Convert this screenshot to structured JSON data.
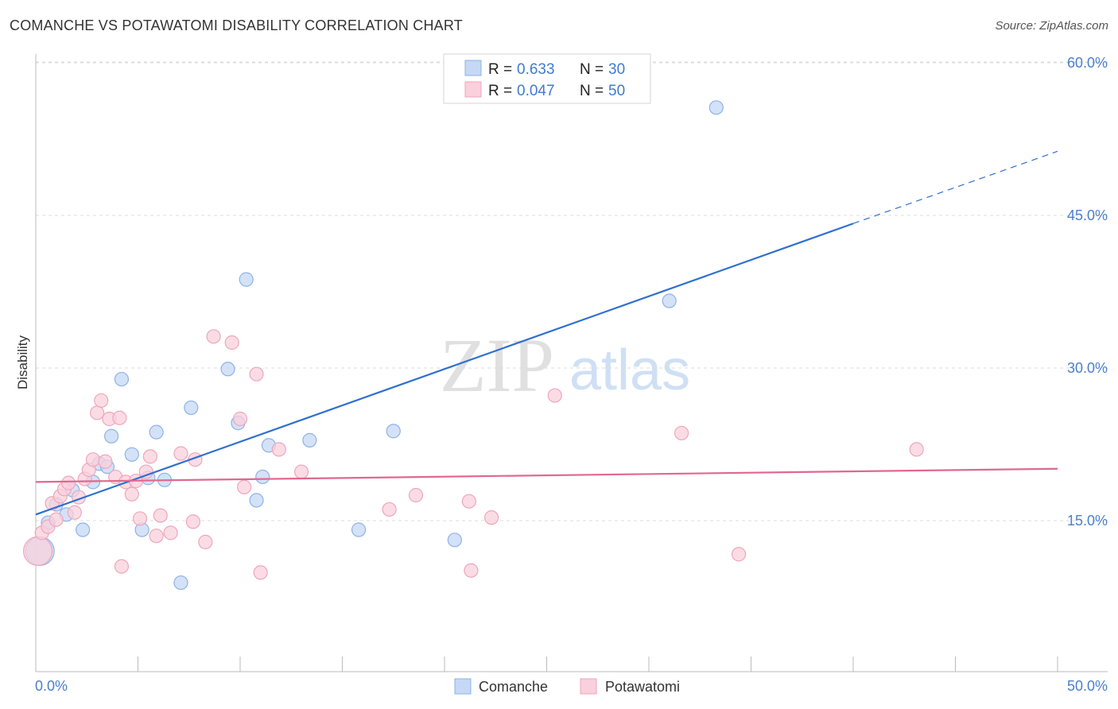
{
  "header": {
    "title": "COMANCHE VS POTAWATOMI DISABILITY CORRELATION CHART",
    "source": "Source: ZipAtlas.com"
  },
  "watermark": {
    "zip": "ZIP",
    "atlas": "atlas"
  },
  "legend": {
    "rows": [
      {
        "r_label": "R =",
        "r_value": "0.633",
        "n_label": "N =",
        "n_value": "30"
      },
      {
        "r_label": "R =",
        "r_value": "0.047",
        "n_label": "N =",
        "n_value": "50"
      }
    ]
  },
  "bottom_legend": [
    "Comanche",
    "Potawatomi"
  ],
  "colors": {
    "comanche_fill": "#c5d8f5",
    "comanche_stroke": "#8fb2e6",
    "comanche_line": "#2f6fd0",
    "potawatomi_fill": "#f9d0dc",
    "potawatomi_stroke": "#eea6bc",
    "potawatomi_line": "#e0688f",
    "tick_text": "#4a7fcf",
    "grid": "#dddddd"
  },
  "chart_data": {
    "type": "scatter",
    "title": "COMANCHE VS POTAWATOMI DISABILITY CORRELATION CHART",
    "xlabel": "",
    "ylabel": "Disability",
    "xlim": [
      0,
      50
    ],
    "ylim": [
      0,
      63
    ],
    "x_tick_labels": [
      "0.0%",
      "50.0%"
    ],
    "y_ticks": [
      15,
      30,
      45,
      60
    ],
    "y_tick_labels": [
      "15.0%",
      "30.0%",
      "45.0%",
      "60.0%"
    ],
    "grid": true,
    "series": [
      {
        "name": "Comanche",
        "R": 0.633,
        "N": 30,
        "points": [
          [
            0.2,
            12.0
          ],
          [
            0.6,
            14.8
          ],
          [
            1.0,
            16.6
          ],
          [
            1.5,
            15.6
          ],
          [
            1.8,
            18.0
          ],
          [
            2.3,
            14.1
          ],
          [
            2.8,
            18.8
          ],
          [
            3.1,
            20.6
          ],
          [
            3.5,
            20.3
          ],
          [
            3.7,
            23.3
          ],
          [
            4.2,
            28.9
          ],
          [
            4.7,
            21.5
          ],
          [
            5.2,
            14.1
          ],
          [
            5.5,
            19.2
          ],
          [
            5.9,
            23.7
          ],
          [
            6.3,
            19.0
          ],
          [
            7.1,
            8.9
          ],
          [
            7.6,
            26.1
          ],
          [
            9.4,
            29.9
          ],
          [
            9.9,
            24.6
          ],
          [
            10.3,
            38.7
          ],
          [
            10.8,
            17.0
          ],
          [
            11.1,
            19.3
          ],
          [
            11.4,
            22.4
          ],
          [
            13.4,
            22.9
          ],
          [
            15.8,
            14.1
          ],
          [
            17.5,
            23.8
          ],
          [
            20.5,
            13.1
          ],
          [
            31.0,
            36.6
          ],
          [
            33.3,
            55.6
          ]
        ],
        "trend": {
          "x0": 0,
          "y0": 15.6,
          "x1": 40,
          "y1": 44.2,
          "dash_to_x": 50,
          "dash_to_y": 51.3
        }
      },
      {
        "name": "Potawatomi",
        "R": 0.047,
        "N": 50,
        "points": [
          [
            0.1,
            12.0
          ],
          [
            0.3,
            13.8
          ],
          [
            0.6,
            14.4
          ],
          [
            0.8,
            16.7
          ],
          [
            1.0,
            15.1
          ],
          [
            1.2,
            17.4
          ],
          [
            1.4,
            18.1
          ],
          [
            1.6,
            18.7
          ],
          [
            1.9,
            15.8
          ],
          [
            2.1,
            17.3
          ],
          [
            2.4,
            19.1
          ],
          [
            2.6,
            20.0
          ],
          [
            2.8,
            21.0
          ],
          [
            3.0,
            25.6
          ],
          [
            3.2,
            26.8
          ],
          [
            3.4,
            20.8
          ],
          [
            3.6,
            25.0
          ],
          [
            3.9,
            19.3
          ],
          [
            4.1,
            25.1
          ],
          [
            4.2,
            10.5
          ],
          [
            4.4,
            18.8
          ],
          [
            4.7,
            17.6
          ],
          [
            4.9,
            18.9
          ],
          [
            5.1,
            15.2
          ],
          [
            5.4,
            19.8
          ],
          [
            5.6,
            21.3
          ],
          [
            5.9,
            13.5
          ],
          [
            6.1,
            15.5
          ],
          [
            6.6,
            13.8
          ],
          [
            7.1,
            21.6
          ],
          [
            7.7,
            14.9
          ],
          [
            7.8,
            21.0
          ],
          [
            8.3,
            12.9
          ],
          [
            8.7,
            33.1
          ],
          [
            9.6,
            32.5
          ],
          [
            10.0,
            25.0
          ],
          [
            10.2,
            18.3
          ],
          [
            10.8,
            29.4
          ],
          [
            11.0,
            9.9
          ],
          [
            11.9,
            22.0
          ],
          [
            13.0,
            19.8
          ],
          [
            17.3,
            16.1
          ],
          [
            18.6,
            17.5
          ],
          [
            21.2,
            16.9
          ],
          [
            21.3,
            10.1
          ],
          [
            22.3,
            15.3
          ],
          [
            25.4,
            27.3
          ],
          [
            31.6,
            23.6
          ],
          [
            34.4,
            11.7
          ],
          [
            43.1,
            22.0
          ]
        ],
        "trend": {
          "x0": 0,
          "y0": 18.8,
          "x1": 50,
          "y1": 20.1
        }
      }
    ]
  }
}
